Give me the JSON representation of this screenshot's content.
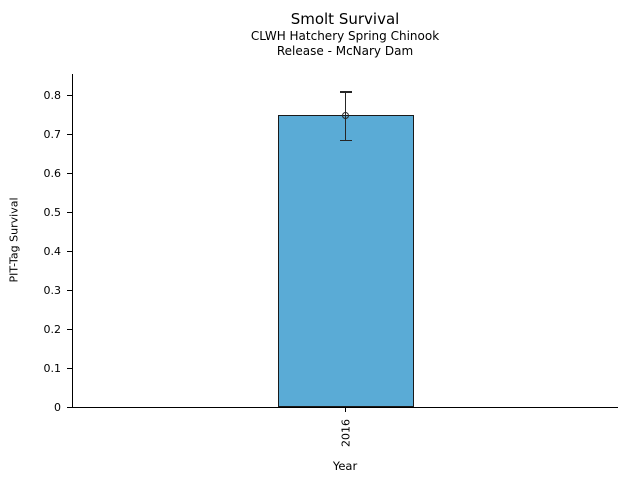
{
  "chart_data": {
    "type": "bar",
    "title": "Smolt Survival",
    "subtitle": [
      "CLWH Hatchery Spring Chinook",
      "Release - McNary Dam"
    ],
    "categories": [
      "2016"
    ],
    "values": [
      0.75
    ],
    "error_bars": [
      {
        "low": 0.685,
        "high": 0.81
      }
    ],
    "marker": "open-circle",
    "xlabel": "Year",
    "ylabel": "PIT-Tag Survival",
    "ylim": [
      0,
      0.856
    ],
    "yticks": [
      0,
      0.1,
      0.2,
      0.3,
      0.4,
      0.5,
      0.6,
      0.7,
      0.8
    ],
    "ytick_labels": [
      "0",
      "0.1",
      "0.2",
      "0.3",
      "0.4",
      "0.5",
      "0.6",
      "0.7",
      "0.8"
    ],
    "xtick_rotation": 90,
    "grid": false,
    "legend": null,
    "bar_color": "#5AABD6",
    "bar_edge_color": "#1a1a1a",
    "error_color": "#262626",
    "text_color": "#000000"
  }
}
